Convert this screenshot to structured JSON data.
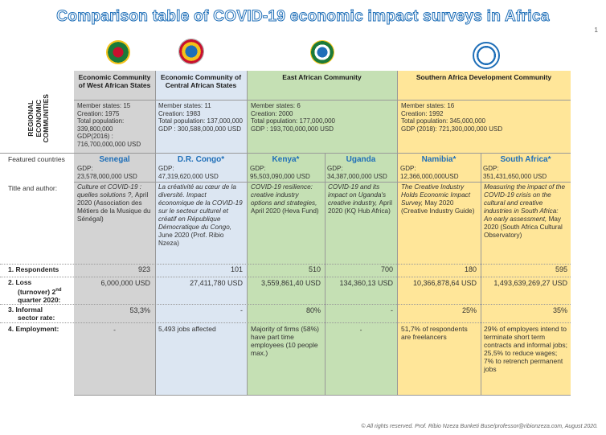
{
  "title": "Comparison table of COVID-19 economic impact surveys in Africa",
  "page_number": "1",
  "rec_label": [
    "REGIONAL",
    "ECONOMIC",
    "COMMUNITIES"
  ],
  "colors": {
    "ecowas": "#d3d3d3",
    "eccas": "#dce6f2",
    "eac": "#c5e0b4",
    "sadc": "#ffe699",
    "title": "#1f6fb8",
    "country": "#1f6fb8"
  },
  "logos": [
    "ecowas-logo",
    "eccas-logo",
    "eac-logo",
    "sadc-logo"
  ],
  "communities": [
    {
      "name": "Economic Community of West African States",
      "info": [
        "Member states: 15",
        "Creation: 1975",
        "Total population: 339,800,000",
        "GDP(2016) :",
        "716,700,000,000 USD"
      ]
    },
    {
      "name": "Economic Community of Central African States",
      "info": [
        "Member states: 11",
        "Creation: 1983",
        "Total population: 137,000,000",
        "GDP : 300,588,000,000 USD"
      ]
    },
    {
      "name": "East African Community",
      "info": [
        "Member states: 6",
        "Creation: 2000",
        "Total population: 177,000,000",
        "GDP : 193,700,000,000 USD"
      ]
    },
    {
      "name": "Southern Africa Development Community",
      "info": [
        "Member states: 16",
        "Creation: 1992",
        "Total population: 345,000,000",
        "GDP (2018): 721,300,000,000 USD"
      ]
    }
  ],
  "labels": {
    "featured": "Featured countries",
    "title_author": "Title and author:",
    "respondents": "1.  Respondents",
    "loss_a": "2.  Loss",
    "loss_b": "(turnover)  2",
    "loss_sup": "nd",
    "loss_c": "quarter 2020:",
    "informal_a": "3.  Informal",
    "informal_b": "sector rate:",
    "employment": "4.  Employment:"
  },
  "countries": [
    {
      "name": "Senegal",
      "gdp_label": "GDP:",
      "gdp": "23,578,000,000 USD",
      "title": "Culture et COVID-19 : quelles solutions ?,",
      "note": "April 2020 (Association des Métiers de la Musique du Sénégal)",
      "respondents": "923",
      "loss": "6,000,000 USD",
      "informal": "53,3%",
      "employment": "-"
    },
    {
      "name": "D.R. Congo*",
      "gdp_label": "GDP:",
      "gdp": "47,319,620,000 USD",
      "title": "La créativité au cœur de la diversité. Impact économique de la COVID-19 sur le secteur culturel et créatif en République Démocratique du Congo,",
      "note": "June 2020 (Prof. Ribio Nzeza)",
      "respondents": "101",
      "loss": "27,411,780 USD",
      "informal": "-",
      "employment": "5,493 jobs affected"
    },
    {
      "name": "Kenya*",
      "gdp_label": "GDP:",
      "gdp": "95,503,090,000 USD",
      "title": "COVID-19 resilience: creative industry options and strategies,",
      "note": "April 2020 (Heva Fund)",
      "respondents": "510",
      "loss": "3,559,861,40 USD",
      "informal": "80%",
      "employment": "Majority of firms (58%)  have part time employees (10 people max.)"
    },
    {
      "name": "Uganda",
      "gdp_label": "GDP:",
      "gdp": "34,387,000,000 USD",
      "title": "COVID-19 and its impact on Uganda's creative industry,",
      "note": "April 2020 (KQ Hub Africa)",
      "respondents": "700",
      "loss": "134,360,13 USD",
      "informal": "-",
      "employment": "-"
    },
    {
      "name": "Namibia*",
      "gdp_label": "GDP:",
      "gdp": "12,366,000,000USD",
      "title": "The Creative Industry Holds Economic Impact Survey,",
      "note": "May 2020 (Creative Industry Guide)",
      "respondents": "180",
      "loss": "10,366,878,64 USD",
      "informal": "25%",
      "employment": "51,7% of respondents are freelancers"
    },
    {
      "name": "South Africa*",
      "gdp_label": "GDP:",
      "gdp": "351,431,650,000 USD",
      "title": "Measuring the impact of the COVID-19 crisis on the cultural and creative industries in South Africa: An early assessment,",
      "note": "May 2020 (South Africa Cultural Observatory)",
      "respondents": "595",
      "loss": "1,493,639,269,27 USD",
      "informal": "35%",
      "employment": "29% of employers intend to terminate short term contracts and informal jobs; 25,5% to reduce wages; 7% to retrench permanent jobs"
    }
  ],
  "footer": "© All rights reserved. Prof. Ribio Nzeza Bunketi Buse/professor@ribionzeza.com, August 2020."
}
